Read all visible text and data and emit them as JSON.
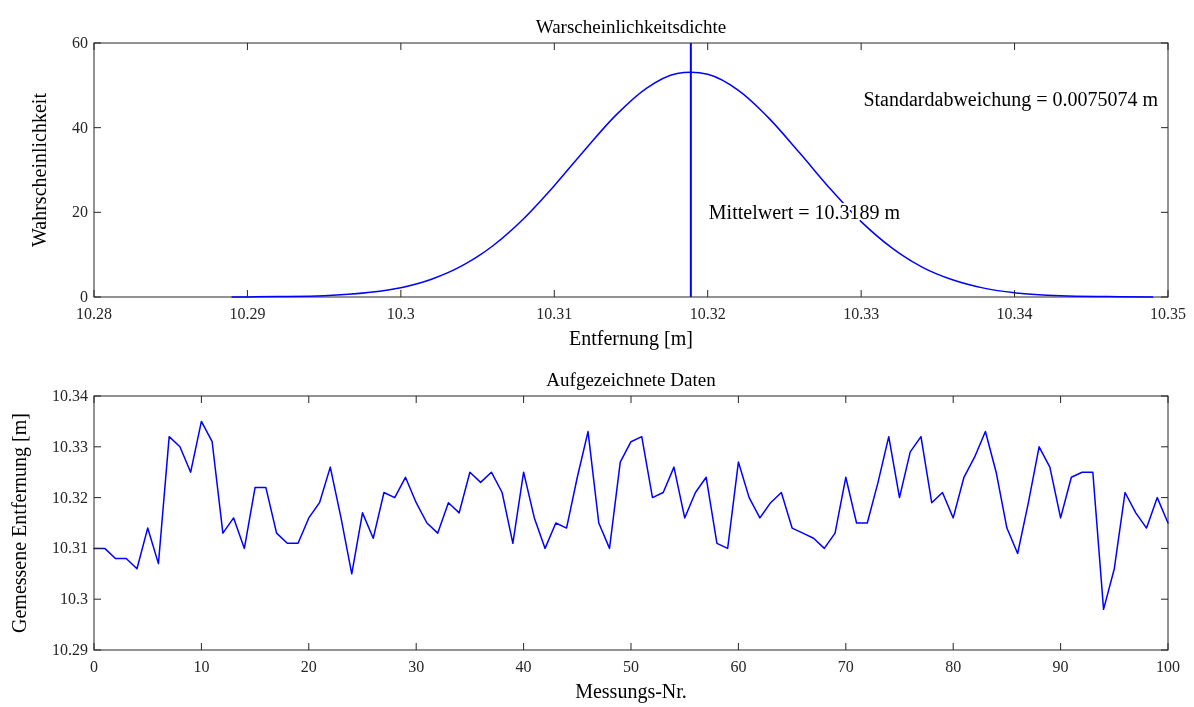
{
  "chart_data": [
    {
      "type": "line",
      "title": "Warscheinlichkeitsdichte",
      "xlabel": "Entfernung [m]",
      "ylabel": "Wahrscheinlichkeit",
      "xlim": [
        10.28,
        10.35
      ],
      "xticks": [
        10.28,
        10.29,
        10.3,
        10.31,
        10.32,
        10.33,
        10.34,
        10.35
      ],
      "ylim": [
        0,
        60
      ],
      "yticks": [
        0,
        20,
        40,
        60
      ],
      "series": [
        {
          "color": "#0000ff",
          "x": [
            10.289,
            10.292,
            10.295,
            10.298,
            10.3,
            10.302,
            10.304,
            10.306,
            10.308,
            10.31,
            10.312,
            10.314,
            10.316,
            10.318,
            10.3189,
            10.32,
            10.322,
            10.324,
            10.326,
            10.328,
            10.33,
            10.332,
            10.334,
            10.336,
            10.338,
            10.34,
            10.343,
            10.346,
            10.349
          ],
          "values": [
            0,
            0.1,
            0.3,
            1.1,
            2.2,
            4.2,
            7.4,
            12.1,
            18.5,
            26.3,
            34.8,
            42.9,
            49.3,
            52.8,
            53.1,
            52.6,
            48.8,
            42.2,
            34,
            25.5,
            17.8,
            11.6,
            7,
            4,
            2.1,
            1,
            0.3,
            0.1,
            0
          ]
        }
      ],
      "ref_lines": [
        {
          "axis": "x",
          "value": 10.3189,
          "color": "#0000ff"
        }
      ],
      "annotations": [
        "Standardabweichung = 0.0075074 m",
        {
          "text": "Mittelwert = 10.3189 m",
          "x": 10.3189,
          "y": 20
        }
      ]
    },
    {
      "type": "line",
      "title": "Aufgezeichnete Daten",
      "xlabel": "Messungs-Nr.",
      "ylabel": "Gemessene Entfernung [m]",
      "xlim": [
        0,
        100
      ],
      "xticks": [
        0,
        10,
        20,
        30,
        40,
        50,
        60,
        70,
        80,
        90,
        100
      ],
      "ylim": [
        10.29,
        10.34
      ],
      "yticks": [
        10.29,
        10.3,
        10.31,
        10.32,
        10.33,
        10.34
      ],
      "series": [
        {
          "color": "#0000ff",
          "x": [
            0,
            1,
            2,
            3,
            4,
            5,
            6,
            7,
            8,
            9,
            10,
            11,
            12,
            13,
            14,
            15,
            16,
            17,
            18,
            19,
            20,
            21,
            22,
            23,
            24,
            25,
            26,
            27,
            28,
            29,
            30,
            31,
            32,
            33,
            34,
            35,
            36,
            37,
            38,
            39,
            40,
            41,
            42,
            43,
            44,
            45,
            46,
            47,
            48,
            49,
            50,
            51,
            52,
            53,
            54,
            55,
            56,
            57,
            58,
            59,
            60,
            61,
            62,
            63,
            64,
            65,
            66,
            67,
            68,
            69,
            70,
            71,
            72,
            73,
            74,
            75,
            76,
            77,
            78,
            79,
            80,
            81,
            82,
            83,
            84,
            85,
            86,
            87,
            88,
            89,
            90,
            91,
            92,
            93,
            94,
            95,
            96,
            97,
            98,
            99,
            100
          ],
          "values": [
            10.31,
            10.31,
            10.308,
            10.308,
            10.306,
            10.314,
            10.307,
            10.332,
            10.33,
            10.325,
            10.335,
            10.331,
            10.313,
            10.316,
            10.31,
            10.322,
            10.322,
            10.313,
            10.311,
            10.311,
            10.316,
            10.319,
            10.326,
            10.316,
            10.305,
            10.317,
            10.312,
            10.321,
            10.32,
            10.324,
            10.319,
            10.315,
            10.313,
            10.319,
            10.317,
            10.325,
            10.323,
            10.325,
            10.321,
            10.311,
            10.325,
            10.316,
            10.31,
            10.315,
            10.314,
            10.324,
            10.333,
            10.315,
            10.31,
            10.327,
            10.331,
            10.332,
            10.32,
            10.321,
            10.326,
            10.316,
            10.321,
            10.324,
            10.311,
            10.31,
            10.327,
            10.32,
            10.316,
            10.319,
            10.321,
            10.314,
            10.313,
            10.312,
            10.31,
            10.313,
            10.324,
            10.315,
            10.315,
            10.323,
            10.332,
            10.32,
            10.329,
            10.332,
            10.319,
            10.321,
            10.316,
            10.324,
            10.328,
            10.333,
            10.325,
            10.314,
            10.309,
            10.319,
            10.33,
            10.326,
            10.316,
            10.324,
            10.325,
            10.325,
            10.298,
            10.306,
            10.321,
            10.317,
            10.314,
            10.32,
            10.315
          ]
        }
      ]
    }
  ]
}
